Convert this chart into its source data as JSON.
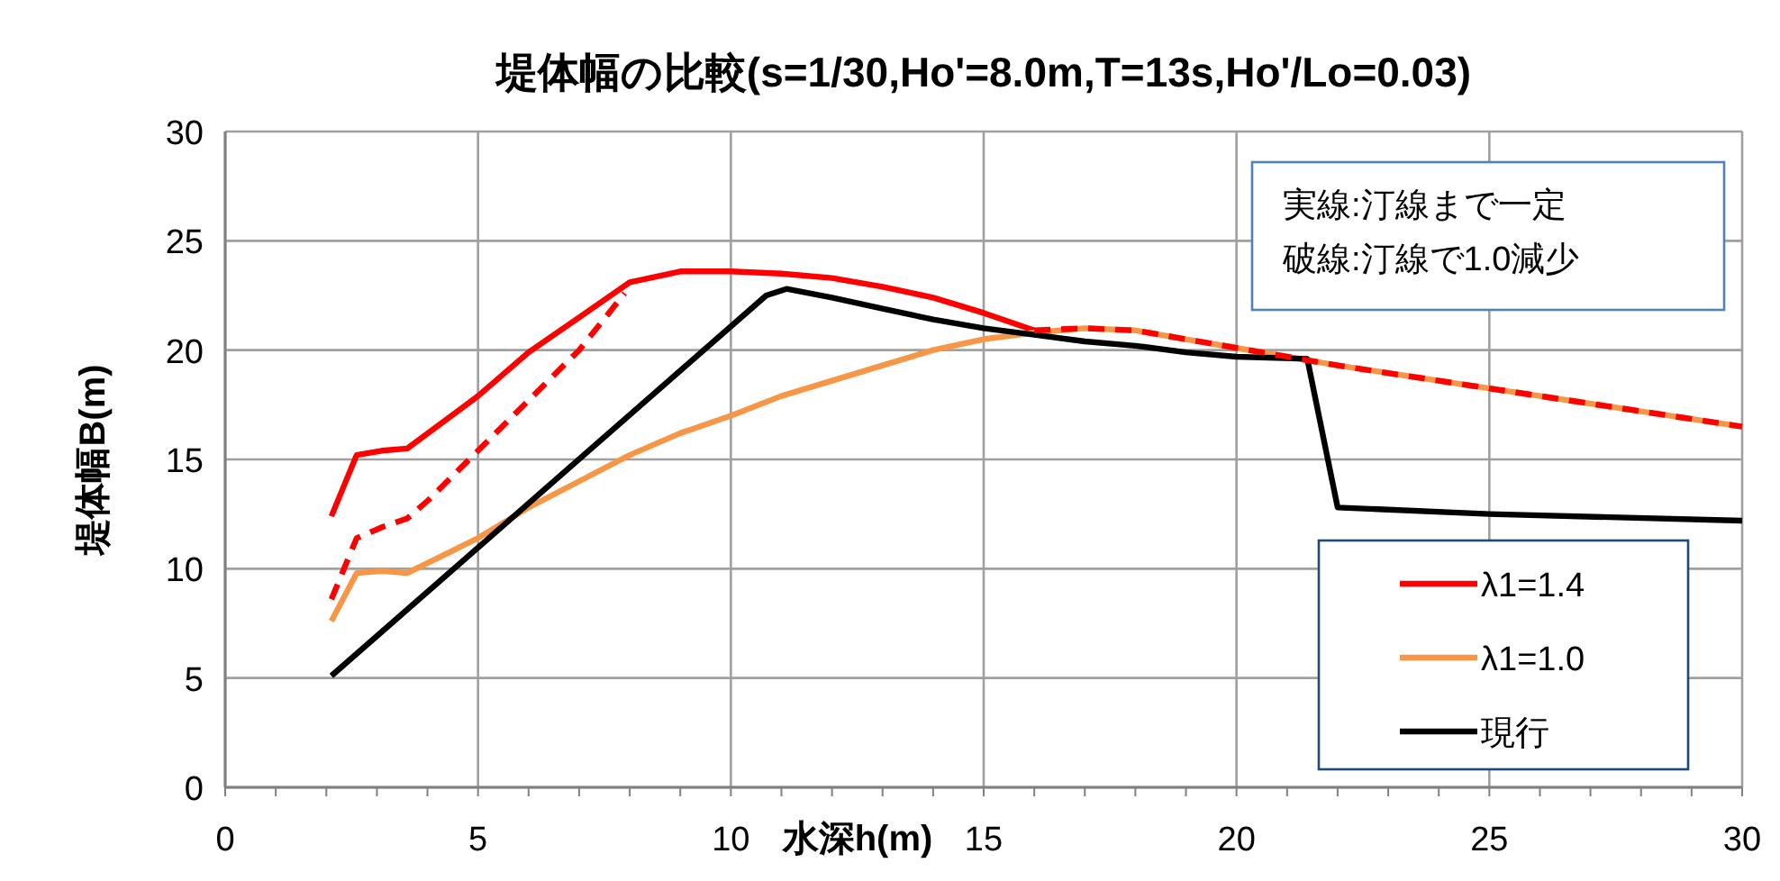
{
  "chart_data": {
    "type": "line",
    "title": "堤体幅の比較(s=1/30,Ho'=8.0m,T=13s,Ho'/Lo=0.03)",
    "xlabel": "水深h(m)",
    "ylabel": "堤体幅B(m)",
    "annotations": [
      "実線:汀線まで一定",
      "破線:汀線で1.0減少"
    ],
    "xlim": [
      0,
      30
    ],
    "xticks": [
      0,
      5,
      10,
      15,
      20,
      25,
      30
    ],
    "ylim": [
      0,
      30
    ],
    "yticks": [
      0,
      5,
      10,
      15,
      20,
      25,
      30
    ],
    "grid": true,
    "legend": "right",
    "marker": "none",
    "series": [
      {
        "name": "λ1=1.4",
        "color": "#ff0000",
        "line_style": "solid",
        "x": [
          2.1,
          2.6,
          3.1,
          3.6,
          5,
          6,
          7,
          8,
          9,
          10,
          11,
          12,
          13,
          14,
          15,
          16
        ],
        "values": [
          12.4,
          15.2,
          15.4,
          15.5,
          17.9,
          19.9,
          21.5,
          23.1,
          23.6,
          23.6,
          23.5,
          23.3,
          22.9,
          22.4,
          21.7,
          20.9
        ]
      },
      {
        "name": "λ1=1.0",
        "color": "#f79646",
        "line_style": "solid",
        "x": [
          2.1,
          2.6,
          3.1,
          3.6,
          5,
          6,
          7,
          8,
          9,
          10,
          11,
          12,
          13,
          14,
          15,
          16,
          17,
          18,
          19,
          20,
          21,
          21.5,
          22,
          24,
          26,
          28,
          30
        ],
        "values": [
          7.6,
          9.8,
          9.9,
          9.8,
          11.4,
          12.8,
          14.0,
          15.2,
          16.2,
          17.0,
          17.9,
          18.6,
          19.3,
          20.0,
          20.5,
          20.8,
          21.0,
          20.9,
          20.5,
          20.1,
          19.7,
          19.5,
          19.3,
          18.6,
          17.9,
          17.2,
          16.5
        ]
      },
      {
        "name": "現行",
        "color": "#000000",
        "line_style": "solid",
        "x": [
          2.1,
          10.7,
          11.1,
          12,
          13,
          14,
          15,
          16,
          17,
          18,
          19,
          20,
          21.4,
          22,
          25,
          30
        ],
        "values": [
          5.1,
          22.5,
          22.8,
          22.4,
          21.9,
          21.4,
          21.0,
          20.7,
          20.4,
          20.2,
          19.9,
          19.7,
          19.6,
          12.8,
          12.5,
          12.2
        ]
      },
      {
        "color": "#ff0000",
        "line_style": "dashed",
        "x": [
          2.1,
          2.6,
          3.1,
          3.6,
          4,
          5,
          6,
          7,
          7.9
        ],
        "values": [
          8.6,
          11.4,
          11.9,
          12.3,
          13.1,
          15.4,
          17.7,
          20.0,
          22.6
        ]
      },
      {
        "color": "#ff0000",
        "line_style": "dashed",
        "x": [
          16,
          17,
          18,
          19,
          20,
          21,
          21.5,
          22,
          24,
          26,
          28,
          30
        ],
        "values": [
          20.9,
          21.0,
          20.9,
          20.5,
          20.1,
          19.7,
          19.5,
          19.3,
          18.6,
          17.9,
          17.2,
          16.5
        ]
      }
    ]
  }
}
